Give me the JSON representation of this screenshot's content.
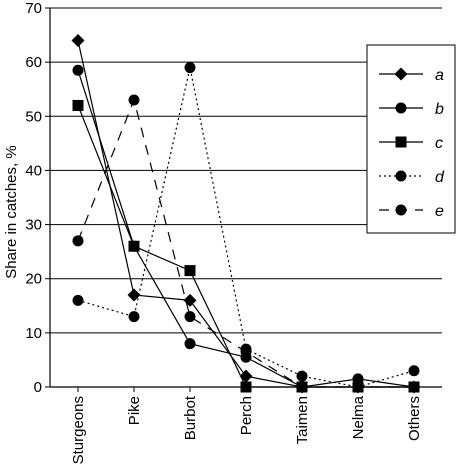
{
  "chart_data": {
    "type": "line",
    "ylabel": "Share in catches, %",
    "xlabel": "",
    "ylim": [
      0,
      70
    ],
    "yticks": [
      0,
      10,
      20,
      30,
      40,
      50,
      60,
      70
    ],
    "grid": "horizontal",
    "legend_position": "top-right",
    "categories": [
      "Sturgeons",
      "Pike",
      "Burbot",
      "Perch",
      "Taimen",
      "Nelma",
      "Others"
    ],
    "series": [
      {
        "name": "a",
        "marker": "diamond",
        "line": "solid",
        "values": [
          64,
          17,
          16,
          2,
          0,
          0,
          0
        ]
      },
      {
        "name": "b",
        "marker": "circle",
        "line": "solid",
        "values": [
          58.5,
          26,
          8,
          5.5,
          0,
          1.5,
          0
        ]
      },
      {
        "name": "c",
        "marker": "square",
        "line": "solid",
        "values": [
          52,
          26,
          21.5,
          0,
          0,
          0,
          0
        ]
      },
      {
        "name": "d",
        "marker": "circle",
        "line": "dotted",
        "values": [
          16,
          13,
          59,
          7,
          2,
          0,
          3
        ]
      },
      {
        "name": "e",
        "marker": "circle",
        "line": "dashed",
        "values": [
          27,
          53,
          13,
          6.5,
          0,
          0,
          0
        ]
      }
    ]
  }
}
